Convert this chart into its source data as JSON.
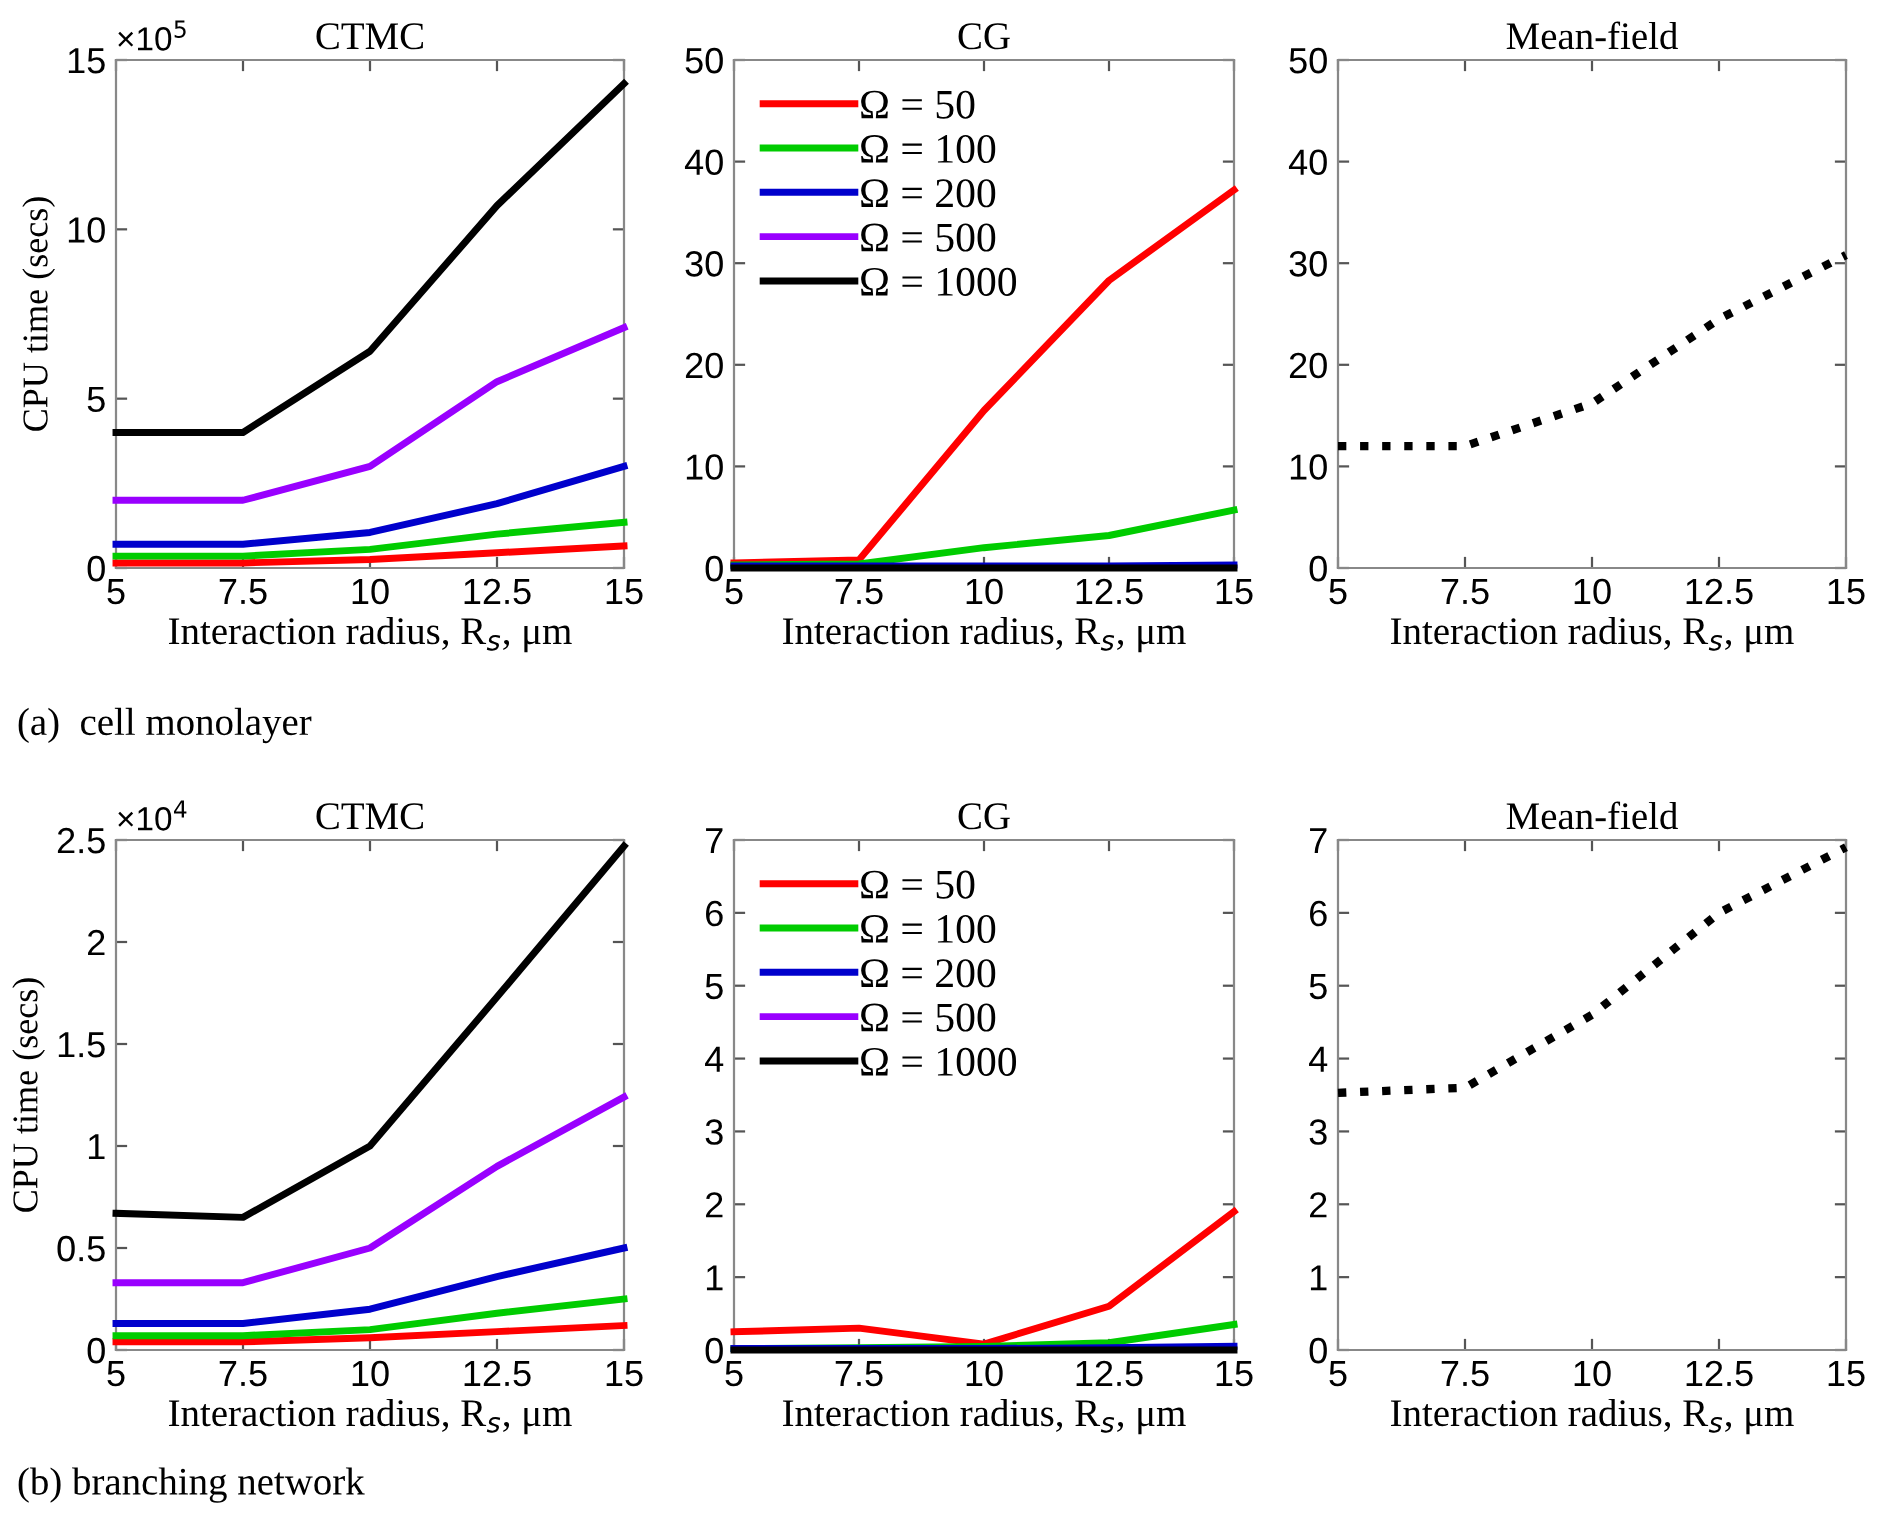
{
  "chart_data": [
    {
      "type": "line",
      "title": "CTMC",
      "xlabel": "Interaction radius, R$_{s}$, μm",
      "ylabel": "CPU time (secs)",
      "x": [
        5,
        7.5,
        10,
        12.5,
        15
      ],
      "xlim": [
        5,
        15
      ],
      "xticks": [
        5,
        7.5,
        10,
        12.5,
        15
      ],
      "ylim": [
        0,
        15
      ],
      "yticks": [
        0,
        5,
        10,
        15
      ],
      "grid": false,
      "legend": false,
      "line_style": "solid",
      "annotations": [
        "×10$^{5}$",
        "(a)  cell monolayer"
      ],
      "series": [
        {
          "color": "#ff0000",
          "values": [
            0.15,
            0.15,
            0.25,
            0.45,
            0.65
          ]
        },
        {
          "color": "#00cc00",
          "values": [
            0.35,
            0.35,
            0.55,
            1.0,
            1.35
          ]
        },
        {
          "color": "#0000cc",
          "values": [
            0.7,
            0.7,
            1.05,
            1.9,
            3.0
          ]
        },
        {
          "color": "#9900ff",
          "values": [
            2.0,
            2.0,
            3.0,
            5.5,
            7.1
          ]
        },
        {
          "color": "#000000",
          "values": [
            4.0,
            4.0,
            6.4,
            10.7,
            14.3
          ]
        }
      ]
    },
    {
      "type": "line",
      "title": "CG",
      "xlabel": "Interaction radius, R$_{s}$, μm",
      "x": [
        5,
        7.5,
        10,
        12.5,
        15
      ],
      "xlim": [
        5,
        15
      ],
      "xticks": [
        5,
        7.5,
        10,
        12.5,
        15
      ],
      "ylim": [
        0,
        50
      ],
      "yticks": [
        0,
        10,
        20,
        30,
        40,
        50
      ],
      "grid": false,
      "legend": "top left",
      "line_style": "solid",
      "series": [
        {
          "name": "Ω = 50",
          "color": "#ff0000",
          "values": [
            0.5,
            0.8,
            15.5,
            28.3,
            37.2
          ]
        },
        {
          "name": "Ω = 100",
          "color": "#00cc00",
          "values": [
            0.3,
            0.4,
            2.0,
            3.2,
            5.7
          ]
        },
        {
          "name": "Ω = 200",
          "color": "#0000cc",
          "values": [
            0.2,
            0.2,
            0.2,
            0.2,
            0.3
          ]
        },
        {
          "name": "Ω = 500",
          "color": "#9900ff",
          "values": [
            null,
            null,
            null,
            null,
            null
          ]
        },
        {
          "name": "Ω = 1000",
          "color": "#000000",
          "values": [
            0,
            0,
            0,
            0,
            0
          ]
        }
      ]
    },
    {
      "type": "line",
      "title": "Mean-field",
      "xlabel": "Interaction radius, R$_{s}$, μm",
      "x": [
        5,
        7.5,
        10,
        12.5,
        15
      ],
      "xlim": [
        5,
        15
      ],
      "xticks": [
        5,
        7.5,
        10,
        12.5,
        15
      ],
      "ylim": [
        0,
        50
      ],
      "yticks": [
        0,
        10,
        20,
        30,
        40,
        50
      ],
      "grid": false,
      "legend": false,
      "line_style": "dotted",
      "series": [
        {
          "color": "#000000",
          "values": [
            12,
            12,
            16.2,
            24.5,
            30.8
          ]
        }
      ]
    },
    {
      "type": "line",
      "title": "CTMC",
      "xlabel": "Interaction radius, R$_{s}$, μm",
      "ylabel": "CPU time (secs)",
      "x": [
        5,
        7.5,
        10,
        12.5,
        15
      ],
      "xlim": [
        5,
        15
      ],
      "xticks": [
        5,
        7.5,
        10,
        12.5,
        15
      ],
      "ylim": [
        0,
        2.5
      ],
      "yticks": [
        0,
        0.5,
        1,
        1.5,
        2,
        2.5
      ],
      "grid": false,
      "legend": false,
      "line_style": "solid",
      "annotations": [
        "×10$^{4}$",
        "(b) branching network"
      ],
      "series": [
        {
          "color": "#ff0000",
          "values": [
            0.04,
            0.04,
            0.06,
            0.09,
            0.12
          ]
        },
        {
          "color": "#00cc00",
          "values": [
            0.07,
            0.07,
            0.1,
            0.18,
            0.25
          ]
        },
        {
          "color": "#0000cc",
          "values": [
            0.13,
            0.13,
            0.2,
            0.36,
            0.5
          ]
        },
        {
          "color": "#9900ff",
          "values": [
            0.33,
            0.33,
            0.5,
            0.9,
            1.24
          ]
        },
        {
          "color": "#000000",
          "values": [
            0.67,
            0.65,
            1.0,
            1.73,
            2.47
          ]
        }
      ]
    },
    {
      "type": "line",
      "title": "CG",
      "xlabel": "Interaction radius, R$_{s}$, μm",
      "x": [
        5,
        7.5,
        10,
        12.5,
        15
      ],
      "xlim": [
        5,
        15
      ],
      "xticks": [
        5,
        7.5,
        10,
        12.5,
        15
      ],
      "ylim": [
        0,
        7
      ],
      "yticks": [
        0,
        1,
        2,
        3,
        4,
        5,
        6,
        7
      ],
      "grid": false,
      "legend": "top left",
      "line_style": "solid",
      "series": [
        {
          "name": "Ω = 50",
          "color": "#ff0000",
          "values": [
            0.25,
            0.3,
            0.08,
            0.6,
            1.9
          ]
        },
        {
          "name": "Ω = 100",
          "color": "#00cc00",
          "values": [
            0.02,
            0.03,
            0.05,
            0.1,
            0.35
          ]
        },
        {
          "name": "Ω = 200",
          "color": "#0000cc",
          "values": [
            0.02,
            0.02,
            0.02,
            0.03,
            0.05
          ]
        },
        {
          "name": "Ω = 500",
          "color": "#9900ff",
          "values": [
            null,
            null,
            null,
            null,
            null
          ]
        },
        {
          "name": "Ω = 1000",
          "color": "#000000",
          "values": [
            0,
            0,
            0,
            0,
            0
          ]
        }
      ]
    },
    {
      "type": "line",
      "title": "Mean-field",
      "xlabel": "Interaction radius, R$_{s}$, μm",
      "x": [
        5,
        7.5,
        10,
        12.5,
        15
      ],
      "xlim": [
        5,
        15
      ],
      "xticks": [
        5,
        7.5,
        10,
        12.5,
        15
      ],
      "ylim": [
        0,
        7
      ],
      "yticks": [
        0,
        1,
        2,
        3,
        4,
        5,
        6,
        7
      ],
      "grid": false,
      "legend": false,
      "line_style": "dotted",
      "series": [
        {
          "color": "#000000",
          "values": [
            3.53,
            3.6,
            4.6,
            6.0,
            6.9
          ]
        }
      ]
    }
  ]
}
